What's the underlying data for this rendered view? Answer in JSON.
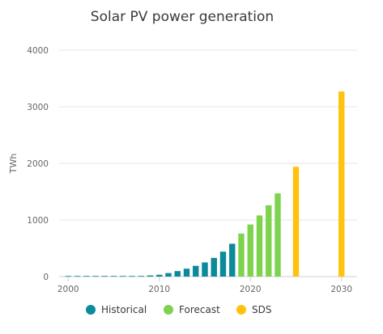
{
  "chart_data": {
    "type": "bar",
    "title": "Solar PV power generation",
    "xlabel": "",
    "ylabel": "TWh",
    "xlim": [
      1999,
      2031
    ],
    "ylim": [
      0,
      4000
    ],
    "x_ticks": [
      2000,
      2010,
      2020,
      2030
    ],
    "y_ticks": [
      0,
      1000,
      2000,
      3000,
      4000
    ],
    "grid": true,
    "legend_position": "bottom",
    "series": [
      {
        "name": "Historical",
        "color": "#0a8a9a",
        "points": [
          {
            "x": 2000,
            "y": 1
          },
          {
            "x": 2001,
            "y": 1
          },
          {
            "x": 2002,
            "y": 2
          },
          {
            "x": 2003,
            "y": 2
          },
          {
            "x": 2004,
            "y": 3
          },
          {
            "x": 2005,
            "y": 4
          },
          {
            "x": 2006,
            "y": 6
          },
          {
            "x": 2007,
            "y": 8
          },
          {
            "x": 2008,
            "y": 12
          },
          {
            "x": 2009,
            "y": 20
          },
          {
            "x": 2010,
            "y": 32
          },
          {
            "x": 2011,
            "y": 62
          },
          {
            "x": 2012,
            "y": 97
          },
          {
            "x": 2013,
            "y": 140
          },
          {
            "x": 2014,
            "y": 190
          },
          {
            "x": 2015,
            "y": 250
          },
          {
            "x": 2016,
            "y": 330
          },
          {
            "x": 2017,
            "y": 440
          },
          {
            "x": 2018,
            "y": 580
          }
        ]
      },
      {
        "name": "Forecast",
        "color": "#7dd34e",
        "points": [
          {
            "x": 2019,
            "y": 760
          },
          {
            "x": 2020,
            "y": 920
          },
          {
            "x": 2021,
            "y": 1080
          },
          {
            "x": 2022,
            "y": 1260
          },
          {
            "x": 2023,
            "y": 1470
          }
        ]
      },
      {
        "name": "SDS",
        "color": "#ffc20e",
        "points": [
          {
            "x": 2025,
            "y": 1940
          },
          {
            "x": 2030,
            "y": 3270
          }
        ]
      }
    ]
  }
}
